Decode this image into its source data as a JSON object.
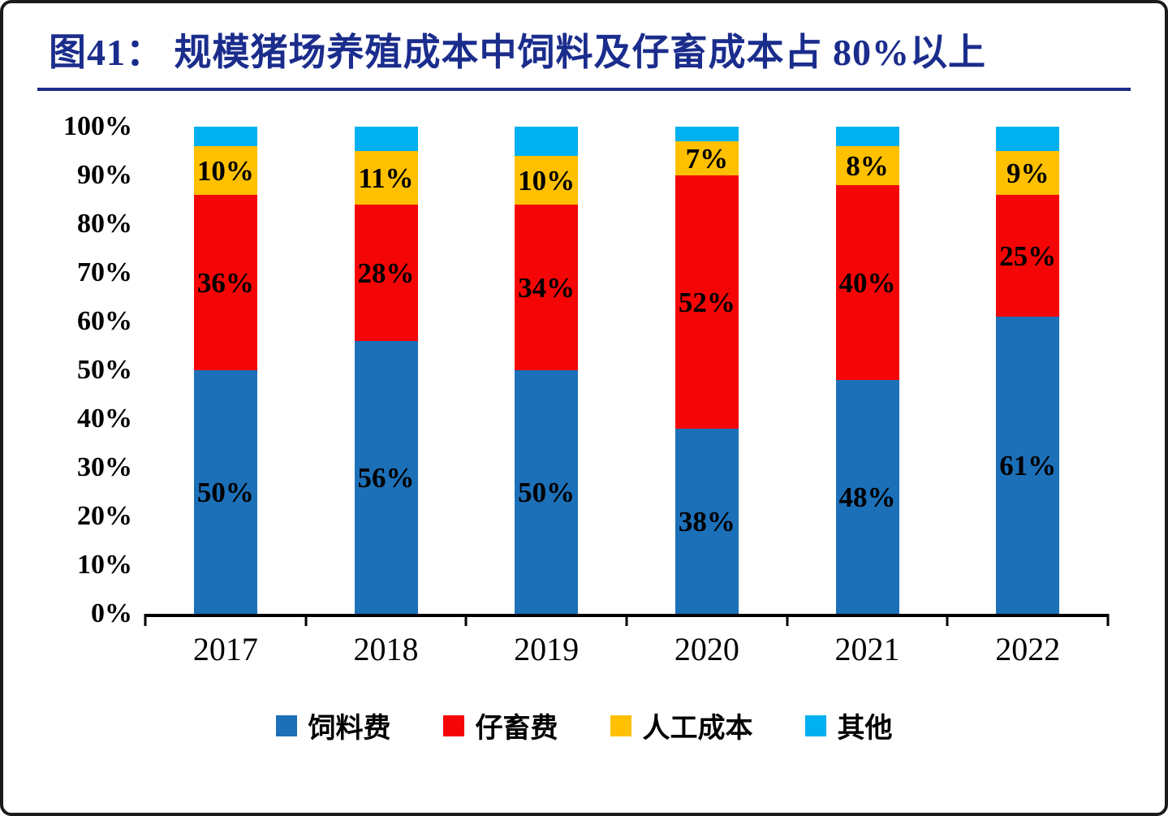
{
  "figure": {
    "title": "图41： 规模猪场养殖成本中饲料及仔畜成本占 80%以上"
  },
  "chart_data": {
    "type": "bar",
    "stacked": true,
    "percent_stacked": true,
    "title": "图41： 规模猪场养殖成本中饲料及仔畜成本占 80%以上",
    "categories": [
      "2017",
      "2018",
      "2019",
      "2020",
      "2021",
      "2022"
    ],
    "series": [
      {
        "name": "饲料费",
        "color": "#1C70B8",
        "values": [
          50,
          56,
          50,
          38,
          48,
          61
        ],
        "labels": [
          "50%",
          "56%",
          "50%",
          "38%",
          "48%",
          "61%"
        ]
      },
      {
        "name": "仔畜费",
        "color": "#F40606",
        "values": [
          36,
          28,
          34,
          52,
          40,
          25
        ],
        "labels": [
          "36%",
          "28%",
          "34%",
          "52%",
          "40%",
          "25%"
        ]
      },
      {
        "name": "人工成本",
        "color": "#FFC000",
        "values": [
          10,
          11,
          10,
          7,
          8,
          9
        ],
        "labels": [
          "10%",
          "11%",
          "10%",
          "7%",
          "8%",
          "9%"
        ]
      },
      {
        "name": "其他",
        "color": "#00B0F0",
        "values": [
          4,
          5,
          6,
          3,
          4,
          5
        ],
        "labels": [
          "",
          "",
          "",
          "",
          "",
          ""
        ]
      }
    ],
    "xlabel": "",
    "ylabel": "",
    "ylim": [
      0,
      100
    ],
    "y_ticks": [
      "100%",
      "90%",
      "80%",
      "70%",
      "60%",
      "50%",
      "40%",
      "30%",
      "20%",
      "10%",
      "0%"
    ],
    "grid": false,
    "legend_position": "bottom",
    "colors": {
      "title_navy": "#1B2D8C",
      "axis_black": "#000000",
      "background": "#ffffff"
    }
  }
}
